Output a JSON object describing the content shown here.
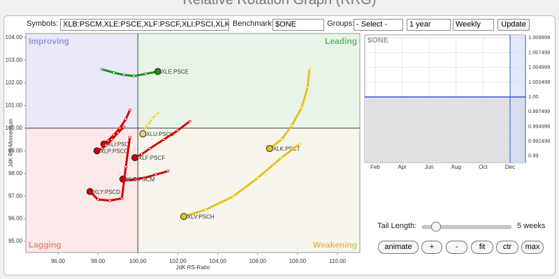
{
  "page": {
    "title": "Relative Rotation Graph (RRG)"
  },
  "controls": {
    "symbols_label": "Symbols:",
    "symbols_value": "XLB:PSCM,XLE:PSCE,XLF:PSCF,XLI:PSCI,XLK:P",
    "benchmark_label": "Benchmark:",
    "benchmark_value": "$ONE",
    "groups_label": "Groups:",
    "groups_value": "- Select -",
    "period": "1 year",
    "frequency": "Weekly",
    "update": "Update",
    "tail_length_label": "Tail Length:",
    "tail_length_value": "5 weeks",
    "buttons": [
      "animate",
      "+",
      "-",
      "fit",
      "ctr",
      "max"
    ]
  },
  "chart_data": [
    {
      "type": "scatter",
      "xlabel": "JdK RS-Ratio",
      "ylabel": "JdK RS-Momentum",
      "quadrants": {
        "improving": "Improving",
        "leading": "Leading",
        "lagging": "Lagging",
        "weakening": "Weakening"
      },
      "quadrant_center": {
        "x": 100,
        "y": 100
      },
      "xlim": [
        94.39,
        111.12
      ],
      "ylim": [
        94.51,
        104.18
      ],
      "xticks": [
        {
          "value": 96,
          "label": "96.00"
        },
        {
          "value": 98,
          "label": "98.00"
        },
        {
          "value": 100,
          "label": "100.00"
        },
        {
          "value": 102,
          "label": "102.00"
        },
        {
          "value": 104,
          "label": "104.00"
        },
        {
          "value": 106,
          "label": "106.00"
        },
        {
          "value": 108,
          "label": "108.00"
        },
        {
          "value": 110,
          "label": "110.00"
        }
      ],
      "yticks": [
        {
          "value": 95,
          "label": "95.00"
        },
        {
          "value": 96,
          "label": "96.00"
        },
        {
          "value": 97,
          "label": "97.00"
        },
        {
          "value": 98,
          "label": "98.00"
        },
        {
          "value": 99,
          "label": "99.00"
        },
        {
          "value": 100,
          "label": "100.00"
        },
        {
          "value": 101,
          "label": "101.00"
        },
        {
          "value": 102,
          "label": "102.00"
        },
        {
          "value": 103,
          "label": "103.00"
        },
        {
          "value": 104,
          "label": "104.00"
        }
      ],
      "series": [
        {
          "name": "XLE:PSCE",
          "color": "#1e8c1e",
          "x": [
            98.2,
            98.8,
            99.3,
            99.8,
            100.4,
            101.0
          ],
          "values": [
            102.6,
            102.45,
            102.35,
            102.3,
            102.4,
            102.5
          ]
        },
        {
          "name": "XLK:PSCT",
          "color": "#e6c11c",
          "x": [
            108.6,
            108.5,
            108.2,
            107.7,
            107.2,
            106.6
          ],
          "values": [
            102.6,
            101.8,
            100.9,
            100.1,
            99.5,
            99.1
          ]
        },
        {
          "name": "XLV:PSCH",
          "color": "#e6c11c",
          "x": [
            108.1,
            107.2,
            106.0,
            104.8,
            103.4,
            102.3
          ],
          "values": [
            99.3,
            98.7,
            97.8,
            97.0,
            96.4,
            96.1
          ]
        },
        {
          "name": "XLU:PSCU",
          "color": "#ecd76a",
          "x": [
            101.1,
            100.9,
            100.7,
            100.5,
            100.3,
            100.25
          ],
          "values": [
            100.7,
            100.6,
            100.4,
            100.15,
            99.9,
            99.75
          ]
        },
        {
          "name": "XLI:PSCI",
          "color": "#d40000",
          "x": [
            99.6,
            99.4,
            99.1,
            98.8,
            98.5,
            98.3
          ],
          "values": [
            100.8,
            100.4,
            100.0,
            99.7,
            99.45,
            99.3
          ]
        },
        {
          "name": "XLP:PSCC",
          "color": "#d40000",
          "x": [
            99.3,
            99.0,
            98.7,
            98.4,
            98.2,
            97.95
          ],
          "values": [
            100.05,
            99.8,
            99.5,
            99.25,
            99.1,
            99.0
          ]
        },
        {
          "name": "XLF:PSCF",
          "color": "#d40000",
          "x": [
            102.6,
            102.0,
            101.3,
            100.6,
            100.2,
            99.85
          ],
          "values": [
            100.3,
            99.9,
            99.5,
            99.1,
            98.85,
            98.7
          ]
        },
        {
          "name": "XLB:PSCM",
          "color": "#d40000",
          "x": [
            101.5,
            100.9,
            100.3,
            99.9,
            99.5,
            99.25
          ],
          "values": [
            98.1,
            97.95,
            97.8,
            97.75,
            97.7,
            97.75
          ]
        },
        {
          "name": "XLY:PSCD",
          "color": "#d40000",
          "x": [
            99.6,
            99.4,
            99.2,
            98.6,
            98.0,
            97.6
          ],
          "values": [
            99.6,
            98.3,
            96.9,
            96.8,
            96.85,
            97.2
          ]
        }
      ]
    },
    {
      "type": "line",
      "title": "$ONE",
      "color": "#3355cc",
      "categories": [
        "Feb",
        "Apr",
        "Jun",
        "Aug",
        "Oct",
        "Dec"
      ],
      "values": [
        1,
        1,
        1,
        1,
        1,
        1
      ],
      "ylim": [
        0.9889,
        1.0105
      ],
      "yticks": [
        {
          "value": 1.009999,
          "label": "1.009999"
        },
        {
          "value": 1.007499,
          "label": "1.007499"
        },
        {
          "value": 1.004999,
          "label": "1.004999"
        },
        {
          "value": 1.002499,
          "label": "1.002499"
        },
        {
          "value": 1,
          "label": "1.00"
        },
        {
          "value": 0.997499,
          "label": "0.997499"
        },
        {
          "value": 0.994999,
          "label": "0.994999"
        },
        {
          "value": 0.992499,
          "label": "0.992499"
        },
        {
          "value": 0.99,
          "label": "0.99"
        }
      ]
    }
  ]
}
